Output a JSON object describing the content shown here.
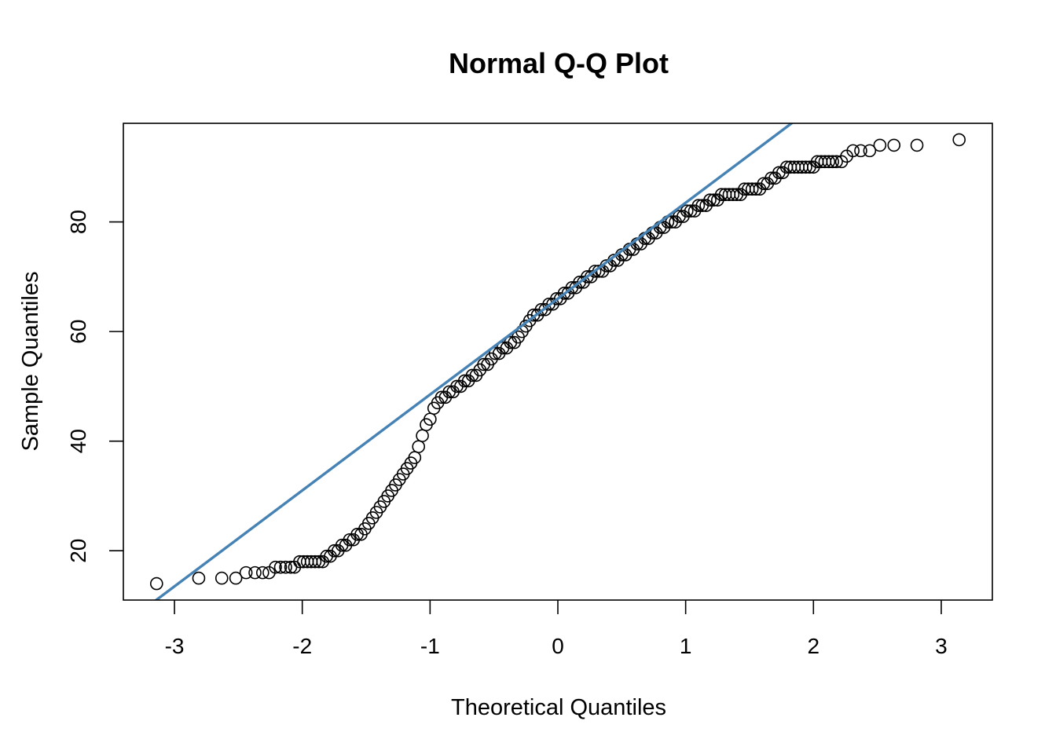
{
  "chart_data": {
    "type": "scatter",
    "title": "Normal Q-Q Plot",
    "xlabel": "Theoretical Quantiles",
    "ylabel": "Sample Quantiles",
    "xlim": [
      -3.4,
      3.4
    ],
    "ylim": [
      11,
      98
    ],
    "x_ticks": [
      -3,
      -2,
      -1,
      0,
      1,
      2,
      3
    ],
    "y_ticks": [
      20,
      40,
      60,
      80
    ],
    "grid": false,
    "line_color": "#4682B4",
    "reference_line": {
      "intercept": 66,
      "slope": 17.5
    },
    "points": [
      [
        -3.14,
        14
      ],
      [
        -2.81,
        15
      ],
      [
        -2.63,
        15
      ],
      [
        -2.52,
        15
      ],
      [
        -2.44,
        16
      ],
      [
        -2.37,
        16
      ],
      [
        -2.31,
        16
      ],
      [
        -2.26,
        16
      ],
      [
        -2.21,
        17
      ],
      [
        -2.17,
        17
      ],
      [
        -2.13,
        17
      ],
      [
        -2.09,
        17
      ],
      [
        -2.06,
        17
      ],
      [
        -2.02,
        18
      ],
      [
        -1.99,
        18
      ],
      [
        -1.96,
        18
      ],
      [
        -1.93,
        18
      ],
      [
        -1.9,
        18
      ],
      [
        -1.87,
        18
      ],
      [
        -1.84,
        18
      ],
      [
        -1.81,
        19
      ],
      [
        -1.78,
        19
      ],
      [
        -1.75,
        20
      ],
      [
        -1.72,
        20
      ],
      [
        -1.69,
        21
      ],
      [
        -1.66,
        21
      ],
      [
        -1.63,
        22
      ],
      [
        -1.6,
        22
      ],
      [
        -1.57,
        23
      ],
      [
        -1.54,
        23
      ],
      [
        -1.51,
        24
      ],
      [
        -1.48,
        25
      ],
      [
        -1.45,
        26
      ],
      [
        -1.42,
        27
      ],
      [
        -1.39,
        28
      ],
      [
        -1.36,
        29
      ],
      [
        -1.33,
        30
      ],
      [
        -1.3,
        31
      ],
      [
        -1.27,
        32
      ],
      [
        -1.24,
        33
      ],
      [
        -1.21,
        34
      ],
      [
        -1.18,
        35
      ],
      [
        -1.15,
        36
      ],
      [
        -1.12,
        37
      ],
      [
        -1.09,
        39
      ],
      [
        -1.06,
        41
      ],
      [
        -1.03,
        43
      ],
      [
        -1.0,
        44
      ],
      [
        -0.97,
        46
      ],
      [
        -0.94,
        47
      ],
      [
        -0.91,
        48
      ],
      [
        -0.88,
        48
      ],
      [
        -0.85,
        49
      ],
      [
        -0.82,
        49
      ],
      [
        -0.79,
        50
      ],
      [
        -0.76,
        50
      ],
      [
        -0.73,
        51
      ],
      [
        -0.7,
        51
      ],
      [
        -0.67,
        52
      ],
      [
        -0.64,
        52
      ],
      [
        -0.61,
        53
      ],
      [
        -0.58,
        54
      ],
      [
        -0.55,
        54
      ],
      [
        -0.52,
        55
      ],
      [
        -0.49,
        56
      ],
      [
        -0.46,
        56
      ],
      [
        -0.43,
        57
      ],
      [
        -0.4,
        57
      ],
      [
        -0.37,
        58
      ],
      [
        -0.34,
        58
      ],
      [
        -0.31,
        59
      ],
      [
        -0.28,
        60
      ],
      [
        -0.25,
        61
      ],
      [
        -0.22,
        62
      ],
      [
        -0.19,
        63
      ],
      [
        -0.16,
        63
      ],
      [
        -0.13,
        64
      ],
      [
        -0.1,
        64
      ],
      [
        -0.07,
        65
      ],
      [
        -0.04,
        65
      ],
      [
        -0.01,
        66
      ],
      [
        0.02,
        66
      ],
      [
        0.05,
        67
      ],
      [
        0.08,
        67
      ],
      [
        0.11,
        68
      ],
      [
        0.14,
        68
      ],
      [
        0.17,
        69
      ],
      [
        0.2,
        69
      ],
      [
        0.23,
        70
      ],
      [
        0.26,
        70
      ],
      [
        0.29,
        71
      ],
      [
        0.32,
        71
      ],
      [
        0.35,
        71
      ],
      [
        0.38,
        72
      ],
      [
        0.41,
        72
      ],
      [
        0.44,
        73
      ],
      [
        0.47,
        73
      ],
      [
        0.5,
        74
      ],
      [
        0.53,
        74
      ],
      [
        0.56,
        75
      ],
      [
        0.59,
        75
      ],
      [
        0.62,
        76
      ],
      [
        0.65,
        76
      ],
      [
        0.68,
        77
      ],
      [
        0.71,
        77
      ],
      [
        0.74,
        78
      ],
      [
        0.77,
        78
      ],
      [
        0.8,
        79
      ],
      [
        0.83,
        79
      ],
      [
        0.86,
        80
      ],
      [
        0.89,
        80
      ],
      [
        0.92,
        80
      ],
      [
        0.95,
        81
      ],
      [
        0.98,
        81
      ],
      [
        1.01,
        82
      ],
      [
        1.04,
        82
      ],
      [
        1.07,
        82
      ],
      [
        1.1,
        83
      ],
      [
        1.13,
        83
      ],
      [
        1.16,
        83
      ],
      [
        1.19,
        84
      ],
      [
        1.22,
        84
      ],
      [
        1.25,
        84
      ],
      [
        1.28,
        85
      ],
      [
        1.31,
        85
      ],
      [
        1.34,
        85
      ],
      [
        1.37,
        85
      ],
      [
        1.4,
        85
      ],
      [
        1.43,
        85
      ],
      [
        1.46,
        86
      ],
      [
        1.49,
        86
      ],
      [
        1.52,
        86
      ],
      [
        1.55,
        86
      ],
      [
        1.58,
        86
      ],
      [
        1.61,
        87
      ],
      [
        1.64,
        87
      ],
      [
        1.67,
        88
      ],
      [
        1.7,
        88
      ],
      [
        1.73,
        89
      ],
      [
        1.76,
        89
      ],
      [
        1.79,
        90
      ],
      [
        1.82,
        90
      ],
      [
        1.85,
        90
      ],
      [
        1.88,
        90
      ],
      [
        1.91,
        90
      ],
      [
        1.94,
        90
      ],
      [
        1.97,
        90
      ],
      [
        2.0,
        90
      ],
      [
        2.03,
        91
      ],
      [
        2.06,
        91
      ],
      [
        2.09,
        91
      ],
      [
        2.12,
        91
      ],
      [
        2.15,
        91
      ],
      [
        2.18,
        91
      ],
      [
        2.22,
        91
      ],
      [
        2.26,
        92
      ],
      [
        2.31,
        93
      ],
      [
        2.37,
        93
      ],
      [
        2.44,
        93
      ],
      [
        2.52,
        94
      ],
      [
        2.63,
        94
      ],
      [
        2.81,
        94
      ],
      [
        3.14,
        95
      ]
    ]
  }
}
